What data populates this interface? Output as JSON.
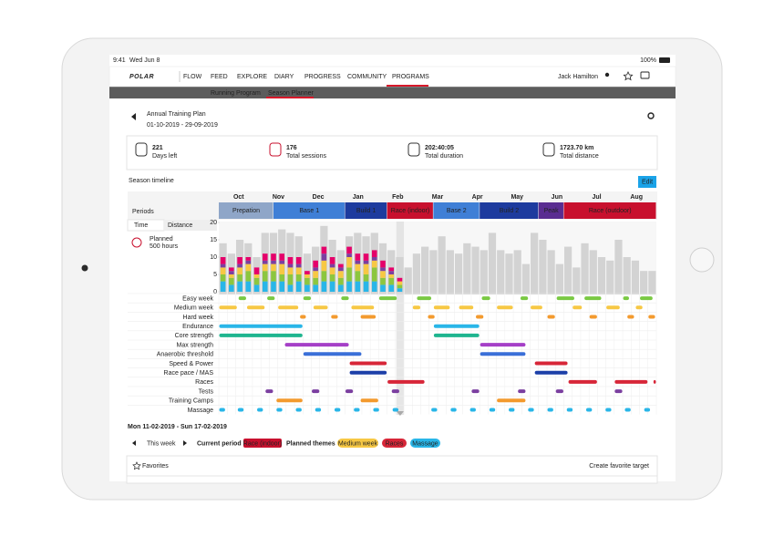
{
  "status_bar": {
    "time": "9:41",
    "date": "Wed Jun 8",
    "battery": "100%"
  },
  "nav": {
    "brand": "POLAR",
    "product": "FLOW",
    "items": [
      "FEED",
      "EXPLORE",
      "DIARY",
      "PROGRESS",
      "COMMUNITY",
      "PROGRAMS"
    ],
    "user": "Jack Hamilton"
  },
  "subnav": {
    "items": [
      "Running Program",
      "Season Planner"
    ]
  },
  "header": {
    "title": "Annual Training Plan",
    "dates": "01-10-2019 - 29-09-2019"
  },
  "stats": [
    {
      "value": "221",
      "label": "Days left"
    },
    {
      "value": "176",
      "label": "Total sessions"
    },
    {
      "value": "202:40:05",
      "label": "Total duration"
    },
    {
      "value": "1723.70 km",
      "label": "Total distance"
    }
  ],
  "timeline": {
    "title": "Season timeline",
    "edit": "Edit",
    "periods_label": "Periods",
    "tabs": [
      "Time",
      "Distance"
    ],
    "planned": "Planned",
    "planned_hours": "500 hours",
    "months": [
      "Oct",
      "Nov",
      "Dec",
      "Jan",
      "Feb",
      "Mar",
      "Apr",
      "May",
      "Jun",
      "Jul",
      "Aug"
    ],
    "current_week": 21,
    "periods": [
      {
        "label": "Prepation",
        "start_week": 0,
        "end_week": 6.5,
        "color": "#8fa6c8"
      },
      {
        "label": "Base 1",
        "start_week": 6.5,
        "end_week": 15,
        "color": "#3f7fd6"
      },
      {
        "label": "Build 1",
        "start_week": 15,
        "end_week": 20,
        "color": "#1d3b9e"
      },
      {
        "label": "Race (indoor)",
        "start_week": 20,
        "end_week": 25.5,
        "color": "#c8102e"
      },
      {
        "label": "Base 2",
        "start_week": 25.5,
        "end_week": 31,
        "color": "#3f7fd6"
      },
      {
        "label": "Build 2",
        "start_week": 31,
        "end_week": 38,
        "color": "#1d3b9e"
      },
      {
        "label": "Peak",
        "start_week": 38,
        "end_week": 41,
        "color": "#5a2d91"
      },
      {
        "label": "Race (outdoor)",
        "start_week": 41,
        "end_week": 52,
        "color": "#c8102e"
      }
    ]
  },
  "chart_data": {
    "type": "bar",
    "stacked": true,
    "ylim": [
      0,
      22
    ],
    "yticks": [
      0,
      5,
      10,
      15,
      20
    ],
    "weeks": 52,
    "planned": {
      "color": "#d3d3d3",
      "values": [
        14,
        11,
        15,
        14,
        10,
        17,
        17,
        18,
        17,
        16,
        11,
        13,
        19,
        15,
        12,
        16,
        17,
        16,
        17,
        14,
        12,
        10,
        7,
        11,
        13,
        12,
        16,
        12,
        11,
        14,
        13,
        12,
        17,
        12,
        11,
        12,
        8,
        17,
        15,
        12,
        8,
        13,
        7,
        14,
        12,
        10,
        9,
        15,
        10,
        9,
        6,
        6
      ]
    },
    "series": [
      {
        "color": "#29b6e8",
        "values": [
          3,
          2,
          3,
          3,
          2,
          3,
          3,
          3,
          2,
          3,
          2,
          2,
          3,
          3,
          2,
          3,
          3,
          3,
          3,
          2,
          2,
          1,
          null,
          null,
          null,
          null,
          null,
          null,
          null,
          null,
          null,
          null,
          null,
          null,
          null,
          null,
          null,
          null,
          null,
          null,
          null,
          null,
          null,
          null,
          null,
          null,
          null,
          null,
          null,
          null,
          null,
          null
        ]
      },
      {
        "color": "#8cc63f",
        "values": [
          2,
          2,
          2,
          3,
          2,
          3,
          3,
          2,
          3,
          2,
          2,
          2,
          3,
          2,
          2,
          4,
          3,
          2,
          4,
          2,
          2,
          1,
          null,
          null,
          null,
          null,
          null,
          null,
          null,
          null,
          null,
          null,
          null,
          null,
          null,
          null,
          null,
          null,
          null,
          null,
          null,
          null,
          null,
          null,
          null,
          null,
          null,
          null,
          null,
          null,
          null,
          null
        ]
      },
      {
        "color": "#f7c844",
        "values": [
          2,
          1,
          2,
          2,
          1,
          2,
          2,
          3,
          2,
          2,
          1,
          2,
          3,
          2,
          2,
          3,
          2,
          3,
          2,
          2,
          1,
          1,
          null,
          null,
          null,
          null,
          null,
          null,
          null,
          null,
          null,
          null,
          null,
          null,
          null,
          null,
          null,
          null,
          null,
          null,
          null,
          null,
          null,
          null,
          null,
          null,
          null,
          null,
          null,
          null,
          null,
          null
        ]
      },
      {
        "color": "#7b3fa0",
        "values": [
          1,
          1,
          1,
          1,
          0,
          1,
          1,
          1,
          1,
          1,
          0,
          1,
          2,
          1,
          1,
          1,
          1,
          1,
          1,
          1,
          1,
          0,
          null,
          null,
          null,
          null,
          null,
          null,
          null,
          null,
          null,
          null,
          null,
          null,
          null,
          null,
          null,
          null,
          null,
          null,
          null,
          null,
          null,
          null,
          null,
          null,
          null,
          null,
          null,
          null,
          null,
          null
        ]
      },
      {
        "color": "#e5006a",
        "values": [
          2,
          1,
          2,
          1,
          2,
          2,
          2,
          2,
          2,
          2,
          1,
          2,
          2,
          2,
          1,
          2,
          2,
          2,
          2,
          2,
          1,
          1,
          null,
          null,
          null,
          null,
          null,
          null,
          null,
          null,
          null,
          null,
          null,
          null,
          null,
          null,
          null,
          null,
          null,
          null,
          null,
          null,
          null,
          null,
          null,
          null,
          null,
          null,
          null,
          null,
          null,
          null
        ]
      }
    ]
  },
  "themes": [
    {
      "label": "Easy week",
      "color": "#7ac943",
      "segments": [
        [
          2.3,
          3.3
        ],
        [
          5.7,
          6.7
        ],
        [
          10,
          11
        ],
        [
          14.5,
          15.5
        ],
        [
          19,
          21.2
        ],
        [
          23.5,
          25.3
        ],
        [
          31.2,
          32.3
        ],
        [
          35.8,
          36.8
        ],
        [
          40.1,
          42.3
        ],
        [
          43.4,
          45.5
        ],
        [
          48,
          48.8
        ],
        [
          50,
          51.6
        ]
      ]
    },
    {
      "label": "Medium week",
      "color": "#f7c844",
      "segments": [
        [
          0,
          2.2
        ],
        [
          3.3,
          5.5
        ],
        [
          7,
          9.5
        ],
        [
          11.2,
          13
        ],
        [
          15.7,
          18.5
        ],
        [
          23,
          24
        ],
        [
          25.5,
          27.5
        ],
        [
          28.5,
          30.3
        ],
        [
          33,
          35
        ],
        [
          37,
          38.5
        ],
        [
          42,
          43.2
        ],
        [
          46,
          47.7
        ],
        [
          49.5,
          50.4
        ]
      ]
    },
    {
      "label": "Hard week",
      "color": "#f39a2e",
      "segments": [
        [
          9.6,
          10.4
        ],
        [
          13.3,
          14.2
        ],
        [
          16.8,
          18.7
        ],
        [
          24.8,
          25.7
        ],
        [
          30.5,
          31.5
        ],
        [
          39,
          40
        ],
        [
          44,
          45
        ],
        [
          48.5,
          49.4
        ],
        [
          51,
          51.9
        ]
      ]
    },
    {
      "label": "Endurance",
      "color": "#29b6e8",
      "segments": [
        [
          0,
          10
        ],
        [
          25.5,
          31
        ]
      ]
    },
    {
      "label": "Core strength",
      "color": "#1fb58f",
      "segments": [
        [
          0,
          10
        ],
        [
          25.5,
          31
        ]
      ]
    },
    {
      "label": "Max strength",
      "color": "#a53fc7",
      "segments": [
        [
          7.8,
          15.5
        ],
        [
          31,
          36.5
        ]
      ]
    },
    {
      "label": "Anaerobic threshold",
      "color": "#3a6fd8",
      "segments": [
        [
          10,
          17
        ],
        [
          31,
          36.5
        ]
      ]
    },
    {
      "label": "Speed & Power",
      "color": "#d72638",
      "segments": [
        [
          15.5,
          20
        ],
        [
          37.5,
          41.5
        ]
      ]
    },
    {
      "label": "Race pace / MAS",
      "color": "#1c3fa8",
      "segments": [
        [
          15.5,
          20
        ],
        [
          37.5,
          41.5
        ]
      ]
    },
    {
      "label": "Races",
      "color": "#d72638",
      "segments": [
        [
          20,
          24.5
        ],
        [
          41.5,
          45
        ],
        [
          47,
          51
        ],
        [
          51.6,
          52
        ]
      ]
    },
    {
      "label": "Tests",
      "color": "#7b3fa0",
      "segments": [
        [
          5.5,
          6.5
        ],
        [
          11,
          12
        ],
        [
          15,
          16
        ],
        [
          20.5,
          21.5
        ],
        [
          30,
          31
        ],
        [
          35.5,
          36.5
        ],
        [
          40,
          41
        ],
        [
          47,
          48
        ]
      ]
    },
    {
      "label": "Training Camps",
      "color": "#f39a2e",
      "segments": [
        [
          6.8,
          10
        ],
        [
          16.8,
          19
        ],
        [
          33,
          36.5
        ]
      ]
    },
    {
      "label": "Massage",
      "color": "#29b6e8",
      "segments": [
        [
          0,
          0.8
        ],
        [
          2.2,
          3
        ],
        [
          4.5,
          5.3
        ],
        [
          6.8,
          7.6
        ],
        [
          9.1,
          9.9
        ],
        [
          11.4,
          12.2
        ],
        [
          13.7,
          14.5
        ],
        [
          16,
          16.8
        ],
        [
          18.3,
          19.1
        ],
        [
          20.6,
          21.4
        ],
        [
          25.2,
          26
        ],
        [
          27.5,
          28.3
        ],
        [
          29.8,
          30.6
        ],
        [
          32.1,
          32.9
        ],
        [
          34.4,
          35.2
        ],
        [
          36.7,
          37.5
        ],
        [
          39,
          39.8
        ],
        [
          41.3,
          42.1
        ],
        [
          43.6,
          44.4
        ],
        [
          45.9,
          46.7
        ],
        [
          48.2,
          49
        ],
        [
          50.5,
          51.3
        ]
      ]
    }
  ],
  "week": {
    "range": "Mon 11-02-2019 - Sun 17-02-2019",
    "nav": "This week",
    "current_period_label": "Current period",
    "current_period": {
      "label": "Race (indoor)",
      "color": "#c8102e"
    },
    "themes_label": "Planned themes",
    "themes": [
      {
        "label": "Medium week",
        "color": "#f7c844"
      },
      {
        "label": "Races",
        "color": "#d72638"
      },
      {
        "label": "Massage",
        "color": "#29b6e8"
      }
    ]
  },
  "favorites": {
    "title": "Favorites",
    "action": "Create favorite target"
  }
}
